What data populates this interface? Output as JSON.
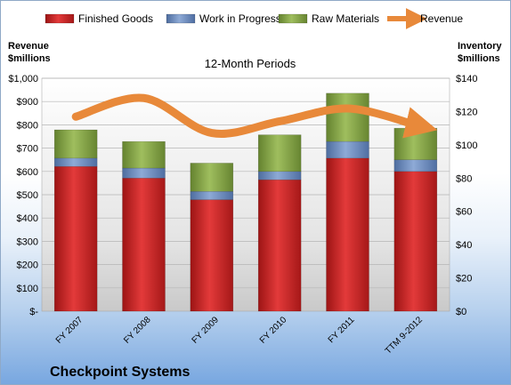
{
  "chart_data": {
    "type": "bar",
    "stacked": true,
    "subtitle": "12-Month Periods",
    "company": "Checkpoint Systems",
    "categories": [
      "FY 2007",
      "FY 2008",
      "FY 2009",
      "FY 2010",
      "FY 2011",
      "TTM 9-2012"
    ],
    "left_axis": {
      "label": [
        "Revenue",
        "$millions"
      ],
      "ticks": [
        "$-",
        "$100",
        "$200",
        "$300",
        "$400",
        "$500",
        "$600",
        "$700",
        "$800",
        "$900",
        "$1,000"
      ],
      "range": [
        0,
        1000
      ]
    },
    "right_axis": {
      "label": [
        "Inventory",
        "$millions"
      ],
      "ticks": [
        "$0",
        "$20",
        "$40",
        "$60",
        "$80",
        "$100",
        "$120",
        "$140"
      ],
      "range": [
        0,
        140
      ]
    },
    "series": [
      {
        "name": "Finished Goods",
        "axis": "right",
        "color": "#d93030",
        "values": [
          87,
          80,
          67,
          79,
          92,
          84
        ]
      },
      {
        "name": "Work in Progress",
        "axis": "right",
        "color": "#6f8fc4",
        "values": [
          5,
          6,
          5,
          5,
          10,
          7
        ]
      },
      {
        "name": "Raw Materials",
        "axis": "right",
        "color": "#8aaa4c",
        "values": [
          17,
          16,
          17,
          22,
          29,
          19
        ]
      },
      {
        "name": "Revenue",
        "type": "line",
        "axis": "left",
        "color": "#e8893a",
        "values": [
          835,
          915,
          765,
          815,
          870,
          800
        ]
      }
    ],
    "grid": true,
    "legend_position": "top"
  }
}
